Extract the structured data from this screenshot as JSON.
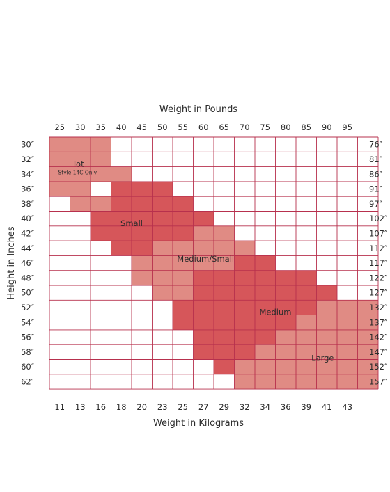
{
  "chart_data": {
    "type": "heatmap",
    "title": "",
    "top_axis_label": "Weight in Pounds",
    "bottom_axis_label": "Weight in Kilograms",
    "left_axis_label": "Height in Inches",
    "right_axis_label": "",
    "pounds": [
      "25",
      "30",
      "35",
      "40",
      "45",
      "50",
      "55",
      "60",
      "65",
      "70",
      "75",
      "80",
      "85",
      "90",
      "95",
      ""
    ],
    "kilograms": [
      "11",
      "13",
      "16",
      "18",
      "20",
      "23",
      "25",
      "27",
      "29",
      "32",
      "34",
      "36",
      "39",
      "41",
      "43",
      ""
    ],
    "height_inches": [
      "30″",
      "32″",
      "34″",
      "36″",
      "38″",
      "40″",
      "42″",
      "44″",
      "46″",
      "48″",
      "50″",
      "52″",
      "54″",
      "56″",
      "58″",
      "60″",
      "62″"
    ],
    "height_cm": [
      "76″",
      "81″",
      "86″",
      "91″",
      "97″",
      "102″",
      "107″",
      "112″",
      "117″",
      "122″",
      "127″",
      "132″",
      "137″",
      "142″",
      "147″",
      "152″",
      "157″"
    ],
    "zones": [
      {
        "id": "tot",
        "label": "Tot",
        "sublabel": "Style 14C Only",
        "color": "#e08b84",
        "cells": [
          [
            0,
            0,
            2
          ],
          [
            1,
            0,
            2
          ],
          [
            2,
            0,
            3
          ],
          [
            3,
            0,
            1
          ]
        ]
      },
      {
        "id": "small",
        "label": "Small",
        "sublabel": "",
        "color": "#d6565a",
        "cells": [
          [
            3,
            3,
            5
          ],
          [
            4,
            2,
            6
          ],
          [
            5,
            2,
            7
          ],
          [
            6,
            2,
            7
          ],
          [
            7,
            3,
            5
          ]
        ]
      },
      {
        "id": "medium-small",
        "label": "Medium/Small",
        "sublabel": "",
        "color": "#e08b84",
        "cells": [
          [
            4,
            1,
            2
          ],
          [
            6,
            7,
            8
          ],
          [
            7,
            5,
            9
          ],
          [
            8,
            4,
            9
          ],
          [
            9,
            4,
            7
          ],
          [
            10,
            5,
            7
          ]
        ]
      },
      {
        "id": "medium",
        "label": "Medium",
        "sublabel": "",
        "color": "#d6565a",
        "cells": [
          [
            8,
            9,
            10
          ],
          [
            9,
            7,
            12
          ],
          [
            10,
            7,
            13
          ],
          [
            11,
            6,
            13
          ],
          [
            12,
            6,
            12
          ],
          [
            13,
            7,
            11
          ],
          [
            14,
            7,
            10
          ],
          [
            15,
            8,
            9
          ]
        ]
      },
      {
        "id": "large",
        "label": "Large",
        "sublabel": "",
        "color": "#e08b84",
        "cells": [
          [
            11,
            13,
            15
          ],
          [
            12,
            12,
            15
          ],
          [
            13,
            11,
            15
          ],
          [
            14,
            10,
            15
          ],
          [
            15,
            9,
            15
          ],
          [
            16,
            9,
            15
          ]
        ]
      }
    ]
  }
}
